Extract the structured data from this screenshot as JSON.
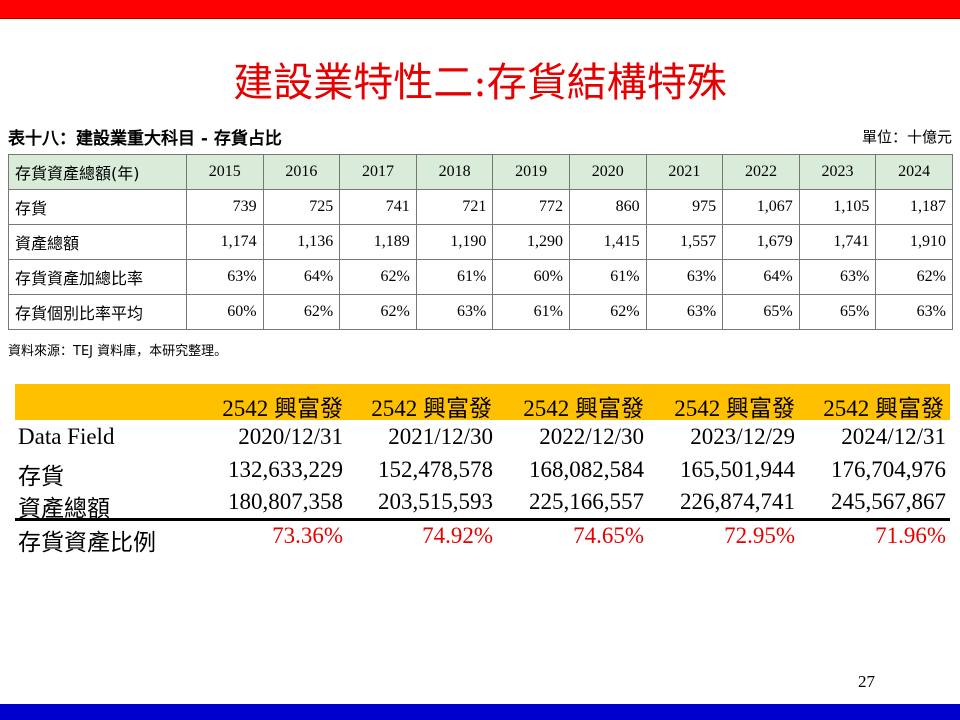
{
  "title": "建設業特性二:存貨結構特殊",
  "table1": {
    "caption": "表十八：建設業重大科目 - 存貨占比",
    "unit": "單位：十億元",
    "header_label": "存貨資產總額(年)",
    "years": [
      "2015",
      "2016",
      "2017",
      "2018",
      "2019",
      "2020",
      "2021",
      "2022",
      "2023",
      "2024"
    ],
    "rows": [
      {
        "label": "存貨",
        "values": [
          "739",
          "725",
          "741",
          "721",
          "772",
          "860",
          "975",
          "1,067",
          "1,105",
          "1,187"
        ]
      },
      {
        "label": "資產總額",
        "values": [
          "1,174",
          "1,136",
          "1,189",
          "1,190",
          "1,290",
          "1,415",
          "1,557",
          "1,679",
          "1,741",
          "1,910"
        ]
      },
      {
        "label": "存貨資產加總比率",
        "values": [
          "63%",
          "64%",
          "62%",
          "61%",
          "60%",
          "61%",
          "63%",
          "64%",
          "63%",
          "62%"
        ]
      },
      {
        "label": "存貨個別比率平均",
        "values": [
          "60%",
          "62%",
          "62%",
          "63%",
          "61%",
          "62%",
          "63%",
          "65%",
          "65%",
          "63%"
        ]
      }
    ],
    "source": "資料來源：TEJ 資料庫，本研究整理。"
  },
  "table2": {
    "company": [
      "2542 興富發",
      "2542 興富發",
      "2542 興富發",
      "2542 興富發",
      "2542 興富發"
    ],
    "field_label": "Data Field",
    "dates": [
      "2020/12/31",
      "2021/12/30",
      "2022/12/30",
      "2023/12/29",
      "2024/12/31"
    ],
    "inventory_label": "存貨",
    "inventory": [
      "132,633,229",
      "152,478,578",
      "168,082,584",
      "165,501,944",
      "176,704,976"
    ],
    "assets_label": "資產總額",
    "assets": [
      "180,807,358",
      "203,515,593",
      "225,166,557",
      "226,874,741",
      "245,567,867"
    ],
    "ratio_label": "存貨資產比例",
    "ratio": [
      "73.36%",
      "74.92%",
      "74.65%",
      "72.95%",
      "71.96%"
    ],
    "ratio_color": "#e60000",
    "header_color": "#ffc000"
  },
  "page_number": "27",
  "colors": {
    "top_bar": "#ff0000",
    "bottom_bar": "#0000cc",
    "title": "#e60000"
  }
}
